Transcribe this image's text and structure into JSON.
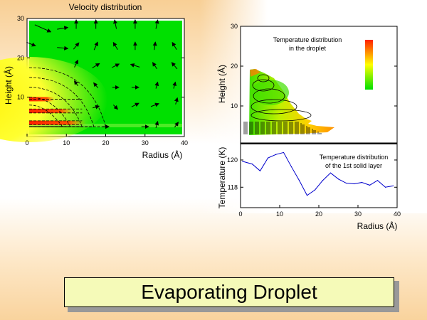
{
  "slide": {
    "title": "Evaporating Droplet"
  },
  "chart_data": [
    {
      "type": "heatmap",
      "title": "Velocity distribution",
      "xlabel": "Radius (Å)",
      "ylabel": "Height (Å)",
      "xlim": [
        0,
        40
      ],
      "ylim": [
        0,
        30
      ],
      "xticks": [
        "0",
        "10",
        "20",
        "30",
        "40"
      ],
      "yticks": [
        "10",
        "20",
        "30"
      ],
      "colors": {
        "low": "#00e000",
        "mid": "#ffff00",
        "high": "#ff2000"
      },
      "hot_bands": [
        {
          "y": 3.5,
          "r_max": 15
        },
        {
          "y": 6.5,
          "r_max": 12
        },
        {
          "y": 9.5,
          "r_max": 7
        }
      ],
      "vectors": [
        [
          4,
          27.5,
          45,
          -20
        ],
        [
          9,
          27.5,
          30,
          5
        ],
        [
          12.5,
          28.5,
          0,
          25
        ],
        [
          17.5,
          28.5,
          0,
          25
        ],
        [
          22.5,
          28.5,
          -5,
          25
        ],
        [
          27.5,
          28.5,
          0,
          25
        ],
        [
          33,
          28.5,
          5,
          25
        ],
        [
          1,
          23.5,
          25,
          -10
        ],
        [
          9,
          22.5,
          30,
          -3
        ],
        [
          12.5,
          23,
          15,
          18
        ],
        [
          17.5,
          23,
          10,
          22
        ],
        [
          22.5,
          23,
          -12,
          20
        ],
        [
          27.5,
          23,
          0,
          22
        ],
        [
          32.5,
          23,
          3,
          22
        ],
        [
          37.5,
          23,
          -12,
          20
        ],
        [
          12.5,
          18.5,
          10,
          20
        ],
        [
          17.5,
          18,
          20,
          12
        ],
        [
          22.5,
          18,
          20,
          10
        ],
        [
          27.5,
          18,
          -25,
          8
        ],
        [
          32.5,
          18,
          -12,
          18
        ],
        [
          37.5,
          18,
          -15,
          18
        ],
        [
          12.5,
          13.5,
          -10,
          14
        ],
        [
          17.5,
          13,
          -12,
          14
        ],
        [
          22.5,
          12.5,
          18,
          0
        ],
        [
          27.5,
          12.5,
          20,
          0
        ],
        [
          33,
          13,
          5,
          18
        ],
        [
          37.5,
          13,
          5,
          18
        ],
        [
          17.5,
          7.5,
          18,
          5
        ],
        [
          22.5,
          7.5,
          12,
          -12
        ],
        [
          27.5,
          8,
          20,
          10
        ],
        [
          32.5,
          8,
          22,
          8
        ],
        [
          38,
          9,
          5,
          18
        ],
        [
          20,
          2.5,
          18,
          0
        ],
        [
          30,
          2.5,
          20,
          0
        ],
        [
          33,
          3,
          5,
          18
        ],
        [
          38,
          3,
          10,
          14
        ]
      ]
    },
    {
      "type": "heatmap",
      "title": "Temperature distribution\nin the droplet",
      "title_lines": [
        "Temperature distribution",
        "in the droplet"
      ],
      "ylabel": "Height (Å)",
      "xlim": [
        0,
        40
      ],
      "ylim": [
        0,
        30
      ],
      "yticks": [
        "10",
        "20",
        "30"
      ],
      "colors": {
        "low": "#00e000",
        "mid": "#ffff00",
        "high": "#ff2000"
      }
    },
    {
      "type": "line",
      "title_lines": [
        "Temperature distribution",
        "of the 1st solid layer"
      ],
      "xlabel": "Radius (Å)",
      "ylabel": "Temperature (K)",
      "xlim": [
        0,
        40
      ],
      "ylim": [
        116.5,
        121.2
      ],
      "xticks": [
        "0",
        "10",
        "20",
        "30",
        "40"
      ],
      "yticks": [
        "118",
        "120"
      ],
      "color": "#0000cc",
      "x": [
        0.5,
        3,
        5,
        7,
        9,
        11,
        13,
        15,
        17,
        19,
        21,
        23,
        25,
        27,
        29,
        31,
        33,
        35,
        37,
        39
      ],
      "y": [
        119.9,
        119.7,
        119.2,
        120.15,
        120.4,
        120.55,
        119.5,
        118.5,
        117.4,
        117.8,
        118.5,
        119.05,
        118.6,
        118.3,
        118.25,
        118.35,
        118.15,
        118.5,
        118.0,
        118.1
      ]
    }
  ]
}
